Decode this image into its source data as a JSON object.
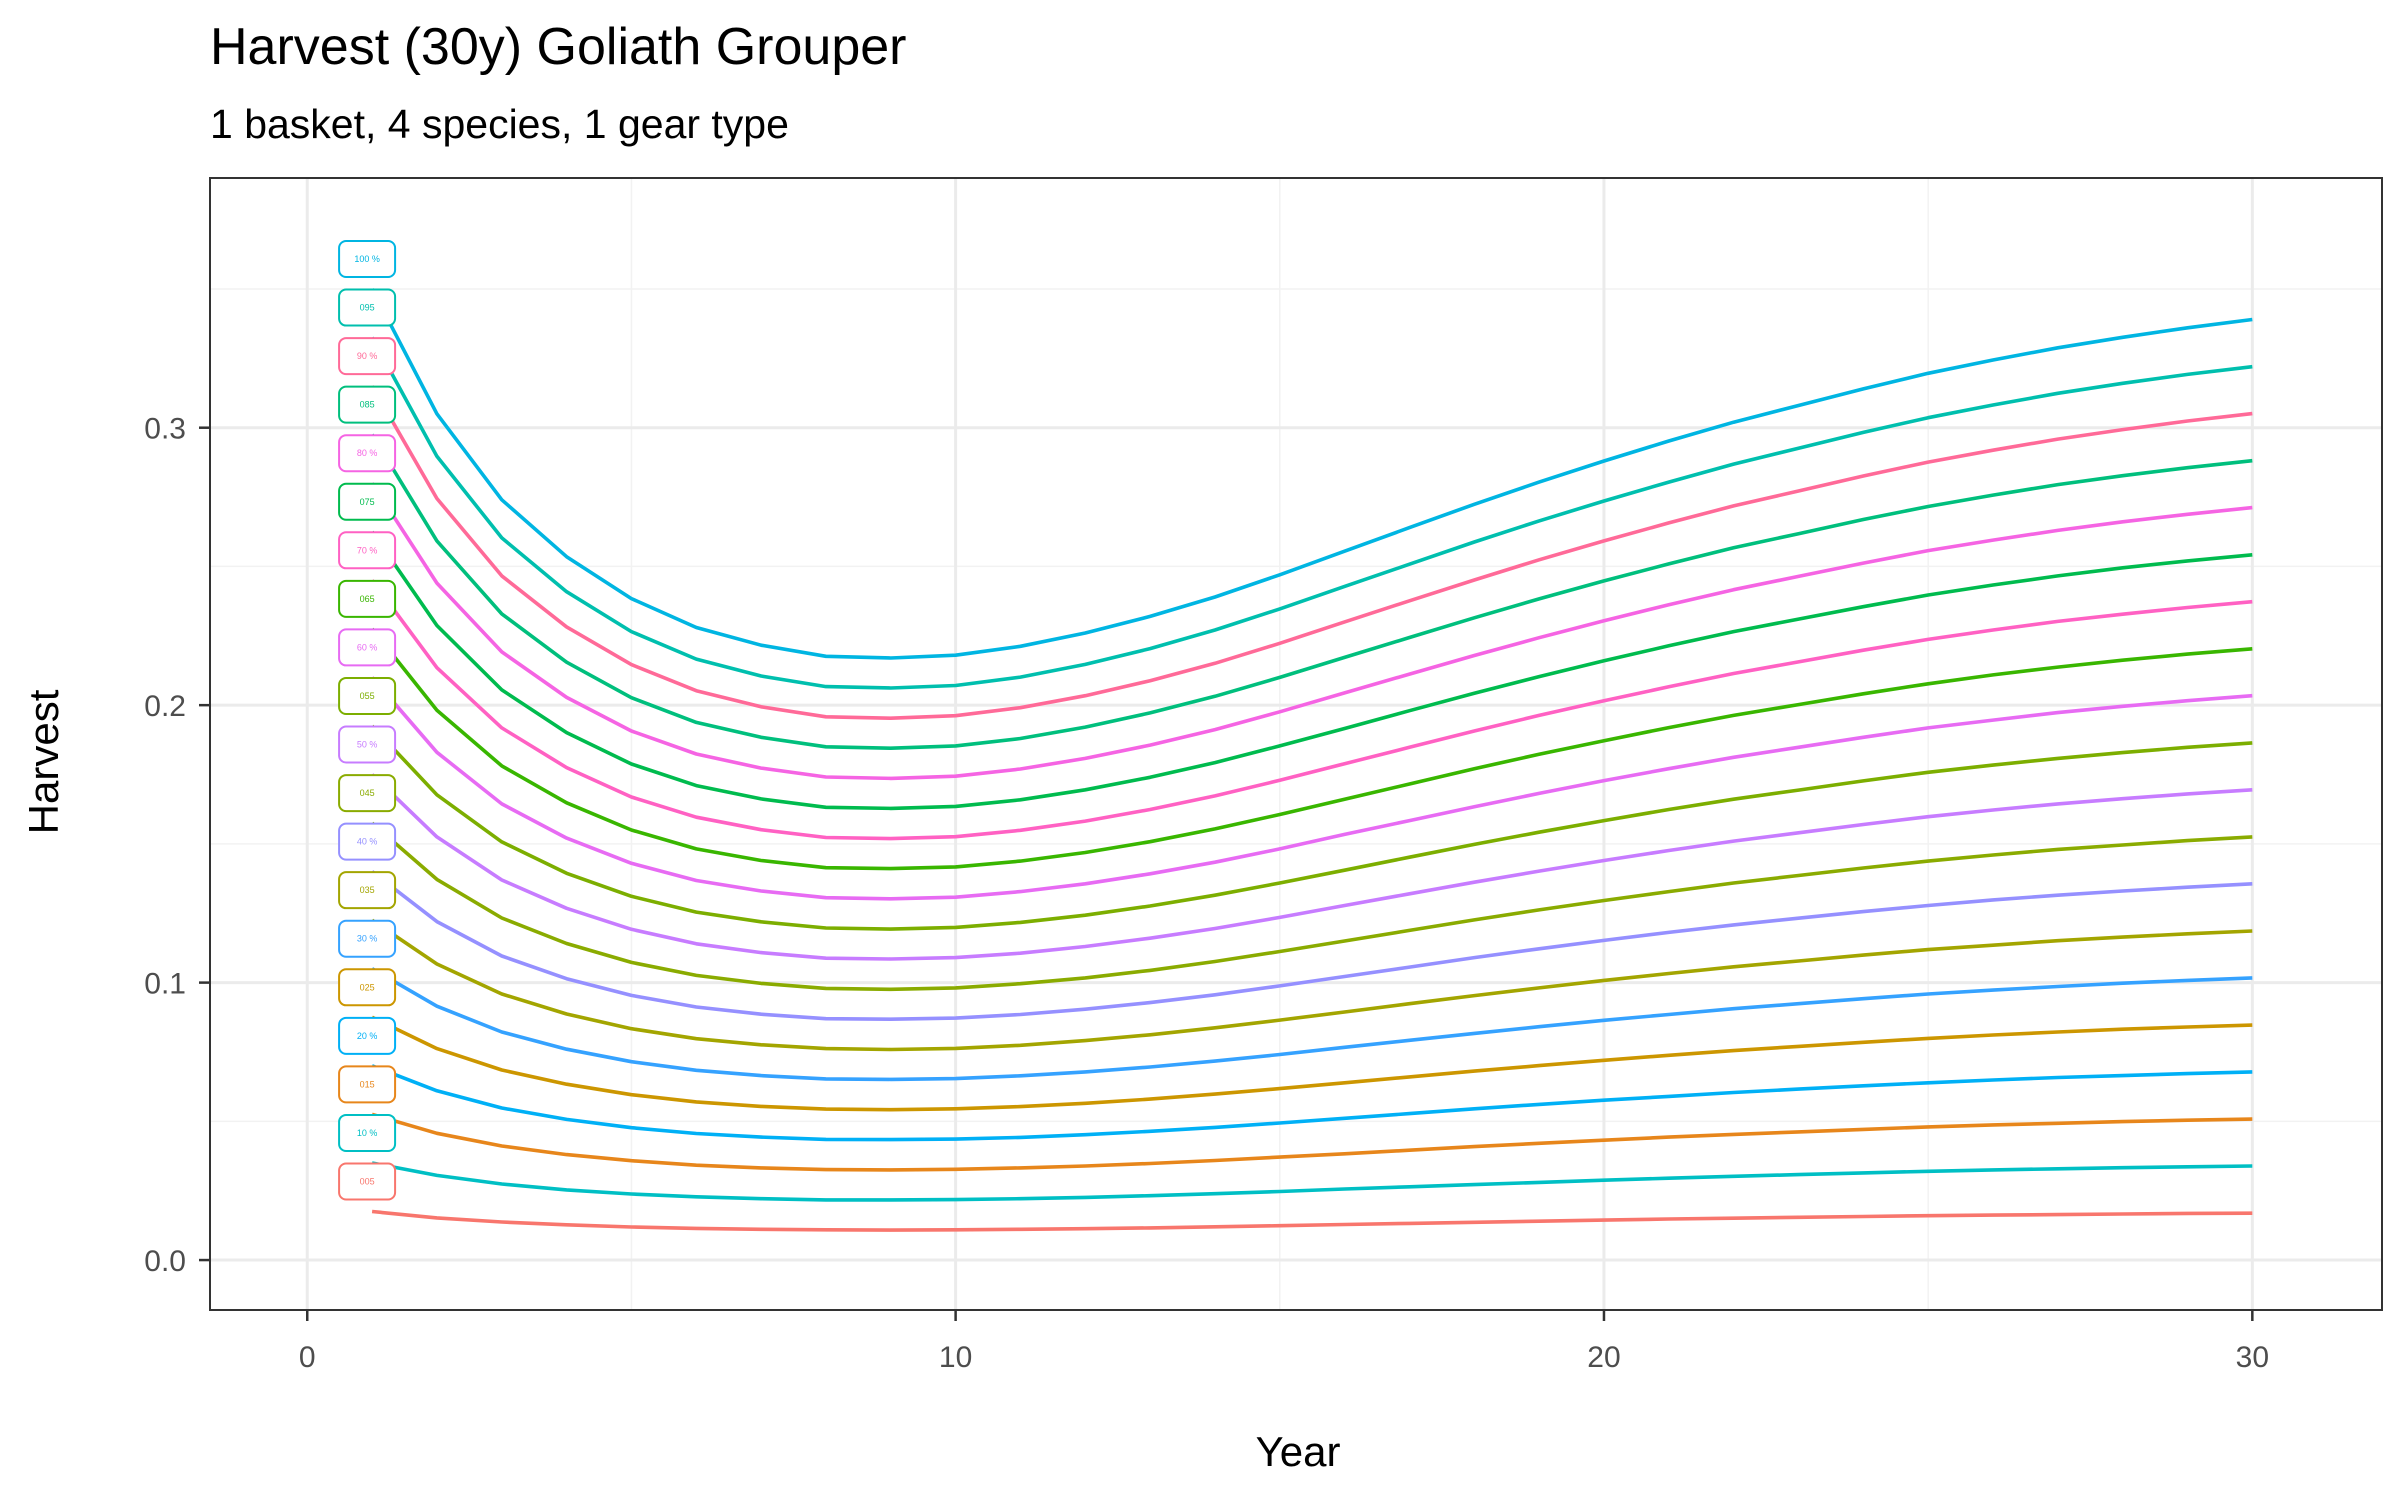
{
  "chart_data": {
    "type": "line",
    "title": "Harvest (30y) Goliath Grouper",
    "subtitle": "1 basket, 4 species, 1 gear type",
    "xlabel": "Year",
    "ylabel": "Harvest",
    "xlim": [
      -1.5,
      32
    ],
    "ylim": [
      -0.018,
      0.39
    ],
    "x_ticks": [
      0,
      10,
      20,
      30
    ],
    "x_tick_labels": [
      "0",
      "10",
      "20",
      "30"
    ],
    "y_ticks": [
      0.0,
      0.1,
      0.2,
      0.3
    ],
    "y_tick_labels": [
      "0.0",
      "0.1",
      "0.2",
      "0.3"
    ],
    "grid": true,
    "x": [
      1,
      2,
      3,
      4,
      5,
      6,
      7,
      8,
      9,
      10,
      11,
      12,
      13,
      14,
      15,
      16,
      17,
      18,
      19,
      20,
      21,
      22,
      23,
      24,
      25,
      26,
      27,
      28,
      29,
      30
    ],
    "series": [
      {
        "name": "005",
        "label": "005",
        "color": "#F8766D",
        "values": [
          0.0175,
          0.0152,
          0.0137,
          0.0127,
          0.0119,
          0.0114,
          0.0111,
          0.0109,
          0.0108,
          0.0109,
          0.0111,
          0.0113,
          0.0116,
          0.012,
          0.0124,
          0.0128,
          0.0132,
          0.0136,
          0.014,
          0.0144,
          0.0148,
          0.0151,
          0.0154,
          0.0157,
          0.016,
          0.0162,
          0.0164,
          0.0166,
          0.0168,
          0.0169
        ]
      },
      {
        "name": "10 %",
        "label": "10 %",
        "color": "#00BFC4",
        "values": [
          0.035,
          0.0305,
          0.0274,
          0.0253,
          0.0238,
          0.0228,
          0.0221,
          0.0217,
          0.0217,
          0.0218,
          0.0221,
          0.0226,
          0.0232,
          0.0239,
          0.0247,
          0.0256,
          0.0264,
          0.0272,
          0.028,
          0.0288,
          0.0295,
          0.0302,
          0.0308,
          0.0314,
          0.032,
          0.0325,
          0.0329,
          0.0333,
          0.0336,
          0.0339
        ]
      },
      {
        "name": "015",
        "label": "015",
        "color": "#E7861B",
        "values": [
          0.0525,
          0.0457,
          0.0411,
          0.038,
          0.0358,
          0.0342,
          0.0332,
          0.0326,
          0.0325,
          0.0327,
          0.0332,
          0.0339,
          0.0348,
          0.0359,
          0.0371,
          0.0383,
          0.0396,
          0.0409,
          0.0421,
          0.0432,
          0.0443,
          0.0453,
          0.0462,
          0.0471,
          0.048,
          0.0487,
          0.0493,
          0.0499,
          0.0504,
          0.0508
        ]
      },
      {
        "name": "20 %",
        "label": "20 %",
        "color": "#00B0F6",
        "values": [
          0.07,
          0.061,
          0.0548,
          0.0507,
          0.0477,
          0.0456,
          0.0443,
          0.0435,
          0.0434,
          0.0436,
          0.0442,
          0.0452,
          0.0464,
          0.0478,
          0.0494,
          0.0511,
          0.0528,
          0.0545,
          0.0561,
          0.0576,
          0.059,
          0.0604,
          0.0616,
          0.0628,
          0.0639,
          0.0649,
          0.0658,
          0.0665,
          0.0672,
          0.0678
        ]
      },
      {
        "name": "025",
        "label": "025",
        "color": "#CC9600",
        "values": [
          0.0875,
          0.0762,
          0.0685,
          0.0634,
          0.0596,
          0.057,
          0.0554,
          0.0544,
          0.0542,
          0.0545,
          0.0553,
          0.0565,
          0.058,
          0.0598,
          0.0618,
          0.0639,
          0.066,
          0.0681,
          0.0701,
          0.072,
          0.0738,
          0.0755,
          0.077,
          0.0785,
          0.0799,
          0.0811,
          0.0822,
          0.0832,
          0.084,
          0.0847
        ]
      },
      {
        "name": "30 %",
        "label": "30 %",
        "color": "#35A2FF",
        "values": [
          0.105,
          0.0915,
          0.0822,
          0.076,
          0.0715,
          0.0684,
          0.0665,
          0.0653,
          0.0651,
          0.0654,
          0.0664,
          0.0678,
          0.0696,
          0.0717,
          0.0741,
          0.0767,
          0.0792,
          0.0817,
          0.0841,
          0.0864,
          0.0885,
          0.0906,
          0.0924,
          0.0942,
          0.0959,
          0.0973,
          0.0986,
          0.0998,
          0.1008,
          0.1017
        ]
      },
      {
        "name": "035",
        "label": "035",
        "color": "#A3A500",
        "values": [
          0.1225,
          0.1067,
          0.0959,
          0.0887,
          0.0834,
          0.0798,
          0.0776,
          0.0762,
          0.0759,
          0.0763,
          0.0774,
          0.0791,
          0.0812,
          0.0837,
          0.0865,
          0.0894,
          0.0924,
          0.0953,
          0.0981,
          0.1008,
          0.1033,
          0.1057,
          0.1078,
          0.1099,
          0.1119,
          0.1135,
          0.1151,
          0.1164,
          0.1176,
          0.1186
        ]
      },
      {
        "name": "40 %",
        "label": "40 %",
        "color": "#9590FF",
        "values": [
          0.14,
          0.122,
          0.1096,
          0.1014,
          0.0954,
          0.0912,
          0.0886,
          0.087,
          0.0868,
          0.0872,
          0.0885,
          0.0904,
          0.0928,
          0.0956,
          0.0988,
          0.1022,
          0.1056,
          0.109,
          0.1122,
          0.1152,
          0.1181,
          0.1208,
          0.1232,
          0.1256,
          0.1278,
          0.1298,
          0.1315,
          0.133,
          0.1344,
          0.1356
        ]
      },
      {
        "name": "045",
        "label": "045",
        "color": "#8AAB00",
        "values": [
          0.1575,
          0.1372,
          0.1233,
          0.1141,
          0.1073,
          0.1026,
          0.0997,
          0.0979,
          0.0976,
          0.0981,
          0.0996,
          0.1017,
          0.1044,
          0.1076,
          0.1112,
          0.115,
          0.1188,
          0.1226,
          0.1262,
          0.1296,
          0.1328,
          0.1359,
          0.1386,
          0.1413,
          0.1438,
          0.146,
          0.148,
          0.1496,
          0.1512,
          0.1525
        ]
      },
      {
        "name": "50 %",
        "label": "50 %",
        "color": "#C77CFF",
        "values": [
          0.175,
          0.1525,
          0.137,
          0.1268,
          0.1192,
          0.114,
          0.1108,
          0.1088,
          0.1085,
          0.109,
          0.1106,
          0.113,
          0.116,
          0.1195,
          0.1235,
          0.1278,
          0.132,
          0.1362,
          0.1402,
          0.144,
          0.1476,
          0.151,
          0.154,
          0.157,
          0.1598,
          0.1622,
          0.1644,
          0.1663,
          0.168,
          0.1695
        ]
      },
      {
        "name": "055",
        "label": "055",
        "color": "#7CAE00",
        "values": [
          0.1925,
          0.1677,
          0.1507,
          0.1394,
          0.1311,
          0.1254,
          0.1219,
          0.1197,
          0.1193,
          0.1199,
          0.1217,
          0.1243,
          0.1276,
          0.1315,
          0.1359,
          0.1405,
          0.1452,
          0.1498,
          0.1542,
          0.1584,
          0.1624,
          0.1661,
          0.1694,
          0.1727,
          0.1758,
          0.1784,
          0.1808,
          0.1829,
          0.1848,
          0.1864
        ]
      },
      {
        "name": "60 %",
        "label": "60 %",
        "color": "#E76BF3",
        "values": [
          0.21,
          0.183,
          0.1644,
          0.1521,
          0.143,
          0.1368,
          0.133,
          0.1306,
          0.1302,
          0.1308,
          0.1328,
          0.1356,
          0.1392,
          0.1434,
          0.1482,
          0.1534,
          0.1584,
          0.1634,
          0.1682,
          0.1728,
          0.1771,
          0.1812,
          0.1848,
          0.1884,
          0.1918,
          0.1946,
          0.1973,
          0.1996,
          0.2016,
          0.2034
        ]
      },
      {
        "name": "065",
        "label": "065",
        "color": "#39B600",
        "values": [
          0.2275,
          0.1982,
          0.1781,
          0.1648,
          0.155,
          0.1482,
          0.144,
          0.1414,
          0.1411,
          0.1417,
          0.1438,
          0.1469,
          0.1508,
          0.1554,
          0.1606,
          0.1661,
          0.1716,
          0.1771,
          0.1823,
          0.1872,
          0.1919,
          0.1963,
          0.2002,
          0.2041,
          0.2077,
          0.2109,
          0.2137,
          0.2162,
          0.2184,
          0.2203
        ]
      },
      {
        "name": "70 %",
        "label": "70 %",
        "color": "#FF61C3",
        "values": [
          0.245,
          0.2135,
          0.1918,
          0.1775,
          0.1669,
          0.1596,
          0.1551,
          0.1523,
          0.1519,
          0.1526,
          0.1549,
          0.1582,
          0.1624,
          0.1673,
          0.1729,
          0.1789,
          0.1848,
          0.1907,
          0.1963,
          0.2016,
          0.2066,
          0.2114,
          0.2156,
          0.2198,
          0.2237,
          0.2271,
          0.2302,
          0.2328,
          0.2352,
          0.2373
        ]
      },
      {
        "name": "075",
        "label": "075",
        "color": "#00BB4E",
        "values": [
          0.2625,
          0.2287,
          0.2055,
          0.1901,
          0.1788,
          0.171,
          0.1662,
          0.1632,
          0.1628,
          0.1635,
          0.1659,
          0.1695,
          0.174,
          0.1793,
          0.1853,
          0.1916,
          0.198,
          0.2043,
          0.2103,
          0.216,
          0.2214,
          0.2265,
          0.231,
          0.2355,
          0.2397,
          0.2433,
          0.2466,
          0.2495,
          0.252,
          0.2542
        ]
      },
      {
        "name": "80 %",
        "label": "80 %",
        "color": "#F564E3",
        "values": [
          0.28,
          0.244,
          0.2192,
          0.2028,
          0.1907,
          0.1824,
          0.1773,
          0.1741,
          0.1736,
          0.1744,
          0.177,
          0.1808,
          0.1856,
          0.1912,
          0.1976,
          0.2044,
          0.2112,
          0.2179,
          0.2243,
          0.2304,
          0.2362,
          0.2416,
          0.2464,
          0.2512,
          0.2557,
          0.2595,
          0.263,
          0.2661,
          0.2688,
          0.2712
        ]
      },
      {
        "name": "085",
        "label": "085",
        "color": "#00BF7D",
        "values": [
          0.2975,
          0.2592,
          0.2329,
          0.2155,
          0.2027,
          0.1938,
          0.1884,
          0.185,
          0.1845,
          0.1853,
          0.188,
          0.1921,
          0.1972,
          0.2032,
          0.21,
          0.2172,
          0.2244,
          0.2315,
          0.2383,
          0.2448,
          0.2509,
          0.2567,
          0.2618,
          0.2669,
          0.2716,
          0.2757,
          0.2795,
          0.2827,
          0.2856,
          0.2881
        ]
      },
      {
        "name": "90 %",
        "label": "90 %",
        "color": "#FF6A98",
        "values": [
          0.315,
          0.2745,
          0.2466,
          0.2282,
          0.2146,
          0.2052,
          0.1994,
          0.1958,
          0.1953,
          0.1962,
          0.1991,
          0.2034,
          0.2088,
          0.2151,
          0.2223,
          0.23,
          0.2376,
          0.2451,
          0.2524,
          0.2592,
          0.2657,
          0.2718,
          0.2772,
          0.2826,
          0.2876,
          0.2919,
          0.2959,
          0.2993,
          0.3024,
          0.3051
        ]
      },
      {
        "name": "095",
        "label": "095",
        "color": "#00BFAE",
        "values": [
          0.3325,
          0.2897,
          0.2603,
          0.2409,
          0.2265,
          0.2166,
          0.2105,
          0.2067,
          0.2062,
          0.2071,
          0.2101,
          0.2147,
          0.2204,
          0.2271,
          0.2347,
          0.2428,
          0.2508,
          0.2588,
          0.2664,
          0.2736,
          0.2804,
          0.2869,
          0.2926,
          0.2983,
          0.3036,
          0.3082,
          0.3124,
          0.316,
          0.3192,
          0.322
        ]
      },
      {
        "name": "100 %",
        "label": "100 %",
        "color": "#00B5E2",
        "values": [
          0.35,
          0.305,
          0.274,
          0.2535,
          0.2384,
          0.228,
          0.2216,
          0.2176,
          0.217,
          0.218,
          0.2212,
          0.226,
          0.232,
          0.239,
          0.247,
          0.2555,
          0.264,
          0.2724,
          0.2804,
          0.288,
          0.2952,
          0.302,
          0.308,
          0.314,
          0.3196,
          0.3244,
          0.3288,
          0.3326,
          0.336,
          0.339
        ]
      }
    ]
  }
}
